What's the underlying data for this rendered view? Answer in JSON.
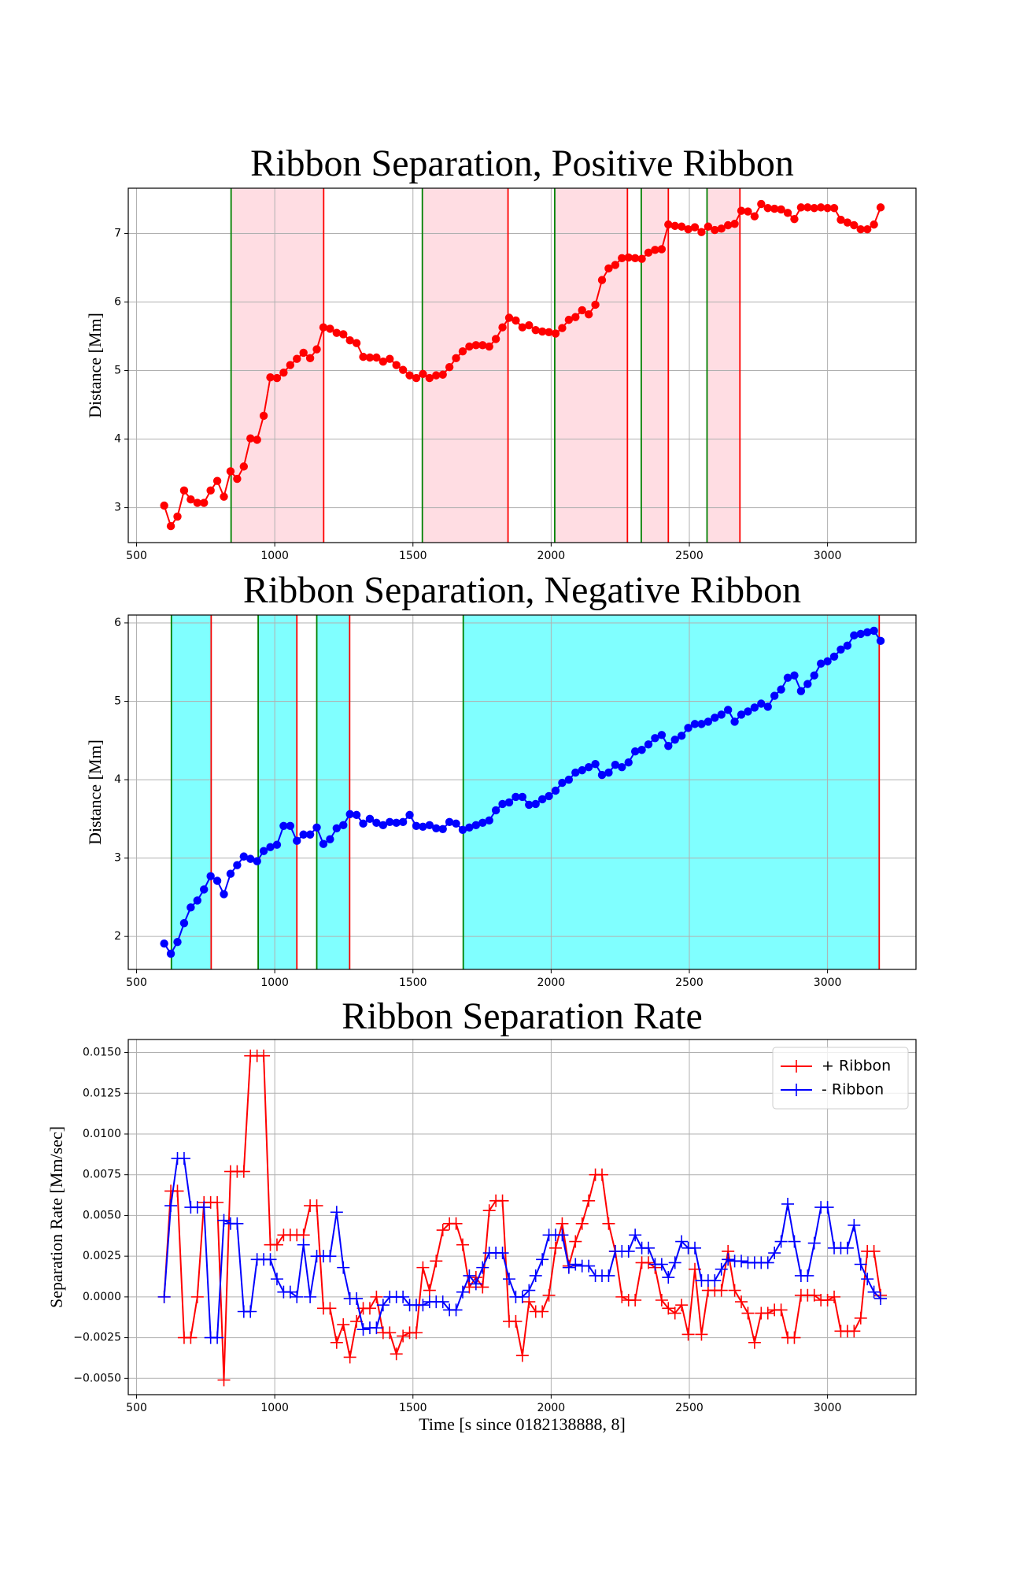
{
  "chart_data": [
    {
      "type": "line",
      "title": "Ribbon Separation, Positive Ribbon",
      "ylabel": "Distance [Mm]",
      "marker": "o",
      "grid": true,
      "xlim": [
        470,
        3320
      ],
      "xticks": [
        500,
        1000,
        1500,
        2000,
        2500,
        3000
      ],
      "ylim": [
        2.49,
        7.66
      ],
      "yticks": [
        3,
        4,
        5,
        6,
        7
      ],
      "span_color": "#ffdde3",
      "start_color": "green",
      "end_color": "red",
      "spans": [
        {
          "start": 842,
          "end": 1177
        },
        {
          "start": 1534,
          "end": 1844
        },
        {
          "start": 2013,
          "end": 2276
        },
        {
          "start": 2326,
          "end": 2424
        },
        {
          "start": 2564,
          "end": 2683
        }
      ],
      "x": [
        600,
        624,
        648,
        672,
        696,
        720,
        744,
        768,
        792,
        816,
        840,
        864,
        888,
        912,
        936,
        960,
        984,
        1008,
        1032,
        1056,
        1080,
        1104,
        1128,
        1152,
        1176,
        1200,
        1224,
        1248,
        1272,
        1296,
        1320,
        1344,
        1368,
        1392,
        1416,
        1440,
        1464,
        1488,
        1512,
        1536,
        1560,
        1584,
        1608,
        1632,
        1656,
        1680,
        1704,
        1728,
        1752,
        1776,
        1800,
        1824,
        1848,
        1872,
        1896,
        1920,
        1944,
        1968,
        1992,
        2016,
        2040,
        2064,
        2088,
        2112,
        2136,
        2160,
        2184,
        2208,
        2232,
        2256,
        2280,
        2304,
        2328,
        2352,
        2376,
        2400,
        2424,
        2448,
        2472,
        2496,
        2520,
        2544,
        2568,
        2592,
        2616,
        2640,
        2664,
        2688,
        2712,
        2736,
        2760,
        2784,
        2808,
        2832,
        2856,
        2880,
        2904,
        2928,
        2952,
        2976,
        3000,
        3024,
        3048,
        3072,
        3096,
        3120,
        3144,
        3168,
        3192
      ],
      "series": [
        {
          "color": "red",
          "values": [
            3.03,
            2.73,
            2.87,
            3.25,
            3.12,
            3.07,
            3.07,
            3.25,
            3.39,
            3.16,
            3.53,
            3.42,
            3.6,
            4.01,
            3.99,
            4.34,
            4.9,
            4.89,
            4.97,
            5.08,
            5.17,
            5.26,
            5.18,
            5.31,
            5.63,
            5.61,
            5.55,
            5.53,
            5.44,
            5.4,
            5.2,
            5.19,
            5.19,
            5.13,
            5.17,
            5.08,
            5.01,
            4.93,
            4.89,
            4.95,
            4.89,
            4.93,
            4.94,
            5.05,
            5.18,
            5.28,
            5.35,
            5.37,
            5.37,
            5.35,
            5.46,
            5.63,
            5.77,
            5.73,
            5.63,
            5.66,
            5.59,
            5.57,
            5.56,
            5.54,
            5.62,
            5.74,
            5.78,
            5.88,
            5.82,
            5.96,
            6.32,
            6.49,
            6.54,
            6.64,
            6.65,
            6.64,
            6.63,
            6.72,
            6.76,
            6.77,
            7.13,
            7.11,
            7.1,
            7.06,
            7.09,
            7.02,
            7.1,
            7.05,
            7.07,
            7.12,
            7.14,
            7.33,
            7.32,
            7.25,
            7.43,
            7.37,
            7.36,
            7.35,
            7.3,
            7.21,
            7.38,
            7.38,
            7.37,
            7.38,
            7.37,
            7.37,
            7.2,
            7.16,
            7.12,
            7.06,
            7.06,
            7.13,
            7.38
          ]
        }
      ]
    },
    {
      "type": "line",
      "title": "Ribbon Separation, Negative Ribbon",
      "ylabel": "Distance [Mm]",
      "marker": "o",
      "grid": true,
      "xlim": [
        470,
        3320
      ],
      "xticks": [
        500,
        1000,
        1500,
        2000,
        2500,
        3000
      ],
      "ylim": [
        1.58,
        6.1
      ],
      "yticks": [
        2,
        3,
        4,
        5,
        6
      ],
      "span_color": "#80ffff",
      "start_color": "green",
      "end_color": "red",
      "spans": [
        {
          "start": 626,
          "end": 770
        },
        {
          "start": 940,
          "end": 1080
        },
        {
          "start": 1152,
          "end": 1271
        },
        {
          "start": 1682,
          "end": 3187
        }
      ],
      "x": [
        600,
        624,
        648,
        672,
        696,
        720,
        744,
        768,
        792,
        816,
        840,
        864,
        888,
        912,
        936,
        960,
        984,
        1008,
        1032,
        1056,
        1080,
        1104,
        1128,
        1152,
        1176,
        1200,
        1224,
        1248,
        1272,
        1296,
        1320,
        1344,
        1368,
        1392,
        1416,
        1440,
        1464,
        1488,
        1512,
        1536,
        1560,
        1584,
        1608,
        1632,
        1656,
        1680,
        1704,
        1728,
        1752,
        1776,
        1800,
        1824,
        1848,
        1872,
        1896,
        1920,
        1944,
        1968,
        1992,
        2016,
        2040,
        2064,
        2088,
        2112,
        2136,
        2160,
        2184,
        2208,
        2232,
        2256,
        2280,
        2304,
        2328,
        2352,
        2376,
        2400,
        2424,
        2448,
        2472,
        2496,
        2520,
        2544,
        2568,
        2592,
        2616,
        2640,
        2664,
        2688,
        2712,
        2736,
        2760,
        2784,
        2808,
        2832,
        2856,
        2880,
        2904,
        2928,
        2952,
        2976,
        3000,
        3024,
        3048,
        3072,
        3096,
        3120,
        3144,
        3168,
        3192
      ],
      "series": [
        {
          "color": "blue",
          "values": [
            1.91,
            1.78,
            1.93,
            2.17,
            2.37,
            2.46,
            2.6,
            2.77,
            2.71,
            2.54,
            2.8,
            2.91,
            3.02,
            2.99,
            2.96,
            3.09,
            3.14,
            3.17,
            3.41,
            3.41,
            3.22,
            3.3,
            3.3,
            3.39,
            3.18,
            3.24,
            3.38,
            3.42,
            3.56,
            3.55,
            3.44,
            3.5,
            3.45,
            3.42,
            3.46,
            3.45,
            3.46,
            3.55,
            3.41,
            3.4,
            3.42,
            3.38,
            3.37,
            3.46,
            3.44,
            3.36,
            3.39,
            3.42,
            3.45,
            3.48,
            3.61,
            3.69,
            3.71,
            3.78,
            3.78,
            3.68,
            3.69,
            3.75,
            3.79,
            3.86,
            3.96,
            4.0,
            4.09,
            4.12,
            4.16,
            4.2,
            4.06,
            4.09,
            4.19,
            4.16,
            4.22,
            4.36,
            4.38,
            4.45,
            4.53,
            4.57,
            4.43,
            4.51,
            4.56,
            4.66,
            4.71,
            4.71,
            4.74,
            4.79,
            4.83,
            4.89,
            4.74,
            4.83,
            4.87,
            4.92,
            4.97,
            4.93,
            5.07,
            5.15,
            5.3,
            5.33,
            5.13,
            5.22,
            5.33,
            5.48,
            5.51,
            5.57,
            5.66,
            5.71,
            5.84,
            5.86,
            5.88,
            5.9,
            5.77
          ]
        }
      ]
    },
    {
      "type": "line",
      "title": "Ribbon Separation Rate",
      "ylabel": "Separation Rate [Mm/sec]",
      "xlabel": "Time [s since 0182138888, 8]",
      "marker": "+",
      "grid": true,
      "legend": "upper right",
      "xlim": [
        470,
        3320
      ],
      "xticks": [
        500,
        1000,
        1500,
        2000,
        2500,
        3000
      ],
      "ylim": [
        -0.006,
        0.0158
      ],
      "yticks": [
        {
          "value": -0.005,
          "label": "−0.0050"
        },
        {
          "value": -0.0025,
          "label": "−0.0025"
        },
        {
          "value": 0,
          "label": "0.0000"
        },
        {
          "value": 0.0025,
          "label": "0.0025"
        },
        {
          "value": 0.005,
          "label": "0.0050"
        },
        {
          "value": 0.0075,
          "label": "0.0075"
        },
        {
          "value": 0.01,
          "label": "0.0100"
        },
        {
          "value": 0.0125,
          "label": "0.0125"
        },
        {
          "value": 0.015,
          "label": "0.0150"
        }
      ],
      "x": [
        600,
        624,
        648,
        672,
        696,
        720,
        744,
        768,
        792,
        816,
        840,
        864,
        888,
        912,
        936,
        960,
        984,
        1008,
        1032,
        1056,
        1080,
        1104,
        1128,
        1152,
        1176,
        1200,
        1224,
        1248,
        1272,
        1296,
        1320,
        1344,
        1368,
        1392,
        1416,
        1440,
        1464,
        1488,
        1512,
        1536,
        1560,
        1584,
        1608,
        1632,
        1656,
        1680,
        1704,
        1728,
        1752,
        1776,
        1800,
        1824,
        1848,
        1872,
        1896,
        1920,
        1944,
        1968,
        1992,
        2016,
        2040,
        2064,
        2088,
        2112,
        2136,
        2160,
        2184,
        2208,
        2232,
        2256,
        2280,
        2304,
        2328,
        2352,
        2376,
        2400,
        2424,
        2448,
        2472,
        2496,
        2520,
        2544,
        2568,
        2592,
        2616,
        2640,
        2664,
        2688,
        2712,
        2736,
        2760,
        2784,
        2808,
        2832,
        2856,
        2880,
        2904,
        2928,
        2952,
        2976,
        3000,
        3024,
        3048,
        3072,
        3096,
        3120,
        3144,
        3168,
        3192
      ],
      "series": [
        {
          "name": "+ Ribbon",
          "color": "red",
          "values": [
            0,
            0.0065,
            0.0065,
            -0.0025,
            -0.0025,
            0,
            0.0058,
            0.0058,
            0.0058,
            -0.0051,
            0.0077,
            0.0077,
            0.0077,
            0.0148,
            0.0148,
            0.0148,
            0.0032,
            0.0032,
            0.0038,
            0.0038,
            0.0038,
            0.0038,
            0.0056,
            0.0056,
            -0.0007,
            -0.0007,
            -0.0028,
            -0.0017,
            -0.0037,
            -0.0015,
            -0.0007,
            -0.0007,
            0,
            -0.0022,
            -0.0022,
            -0.0035,
            -0.0024,
            -0.0022,
            -0.0022,
            0.0018,
            0.0004,
            0.0022,
            0.0041,
            0.0045,
            0.0045,
            0.0032,
            0.0006,
            0.0012,
            0.0006,
            0.0053,
            0.0059,
            0.0059,
            -0.0015,
            -0.0015,
            -0.0036,
            -0.0003,
            -0.0009,
            -0.0009,
            0.0001,
            0.003,
            0.0045,
            0.0019,
            0.0034,
            0.0045,
            0.0059,
            0.0075,
            0.0075,
            0.0045,
            0.0028,
            0,
            -0.0002,
            -0.0002,
            0.0021,
            0.0021,
            0.0018,
            -0.0002,
            -0.0007,
            -0.001,
            -0.0005,
            -0.0023,
            0.0017,
            -0.0023,
            0.0004,
            0.0004,
            0.0004,
            0.0028,
            0.0004,
            -0.0003,
            -0.001,
            -0.0028,
            -0.001,
            -0.001,
            -0.0008,
            -0.0008,
            -0.0025,
            -0.0025,
            0.0001,
            0.0001,
            0.0001,
            -0.0002,
            -0.0002,
            0,
            -0.0021,
            -0.0021,
            -0.0021,
            -0.0013,
            0.0028,
            0.0028,
            0.0001
          ]
        },
        {
          "name": "- Ribbon",
          "color": "blue",
          "values": [
            0,
            0.0056,
            0.0085,
            0.0085,
            0.0055,
            0.0055,
            0.0055,
            -0.0025,
            -0.0025,
            0.0047,
            0.0045,
            0.0045,
            -0.0009,
            -0.0009,
            0.0023,
            0.0023,
            0.0023,
            0.0011,
            0.0003,
            0.0003,
            0,
            0.0032,
            0,
            0.0025,
            0.0025,
            0.0025,
            0.0052,
            0.0018,
            -0.0001,
            -0.0001,
            -0.002,
            -0.0019,
            -0.0019,
            -0.0005,
            0,
            0,
            0,
            -0.0005,
            -0.0005,
            -0.0005,
            -0.0003,
            -0.0003,
            -0.0003,
            -0.0008,
            -0.0008,
            0.0003,
            0.0013,
            0.0008,
            0.0018,
            0.0027,
            0.0027,
            0.0027,
            0.0011,
            0,
            0,
            0.0004,
            0.0013,
            0.0023,
            0.0038,
            0.0038,
            0.0038,
            0.0018,
            0.002,
            0.0019,
            0.0019,
            0.0013,
            0.0013,
            0.0013,
            0.0028,
            0.0028,
            0.0028,
            0.0038,
            0.003,
            0.003,
            0.002,
            0.002,
            0.0012,
            0.0021,
            0.0034,
            0.003,
            0.003,
            0.001,
            0.001,
            0.001,
            0.0017,
            0.0023,
            0.0022,
            0.0022,
            0.0021,
            0.0021,
            0.0021,
            0.0021,
            0.0027,
            0.0034,
            0.0057,
            0.0034,
            0.0013,
            0.0013,
            0.0033,
            0.0055,
            0.0055,
            0.003,
            0.003,
            0.003,
            0.0044,
            0.002,
            0.0011,
            0.0003,
            -0.0001
          ]
        }
      ]
    }
  ]
}
